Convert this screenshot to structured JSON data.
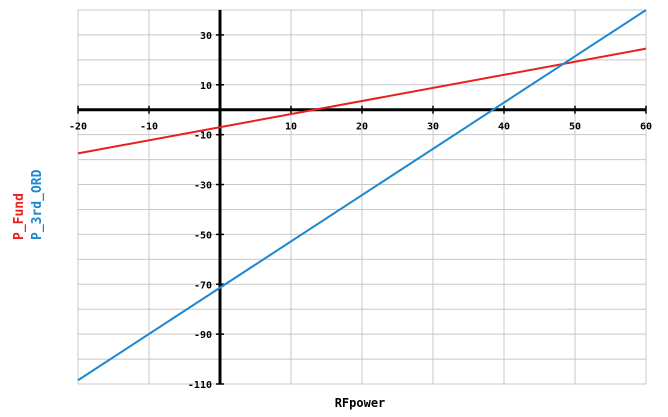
{
  "chart_data": {
    "type": "line",
    "xlabel": "RFpower",
    "ylabels": [
      "P_Fund",
      "P_3rd_ORD"
    ],
    "xlim": [
      -20,
      60
    ],
    "ylim": [
      -110,
      40
    ],
    "x_ticks": [
      -20,
      -10,
      10,
      20,
      30,
      40,
      50,
      60
    ],
    "y_ticks": [
      30,
      10,
      -10,
      -30,
      -50,
      -70,
      -90,
      -110
    ],
    "grid": true,
    "series": [
      {
        "name": "P_Fund",
        "color": "#e8201c",
        "x": [
          -20,
          60
        ],
        "y": [
          -17.5,
          24.5
        ]
      },
      {
        "name": "P_3rd_ORD",
        "color": "#1f86cf",
        "x": [
          -20,
          60
        ],
        "y": [
          -108.5,
          40
        ]
      }
    ]
  }
}
